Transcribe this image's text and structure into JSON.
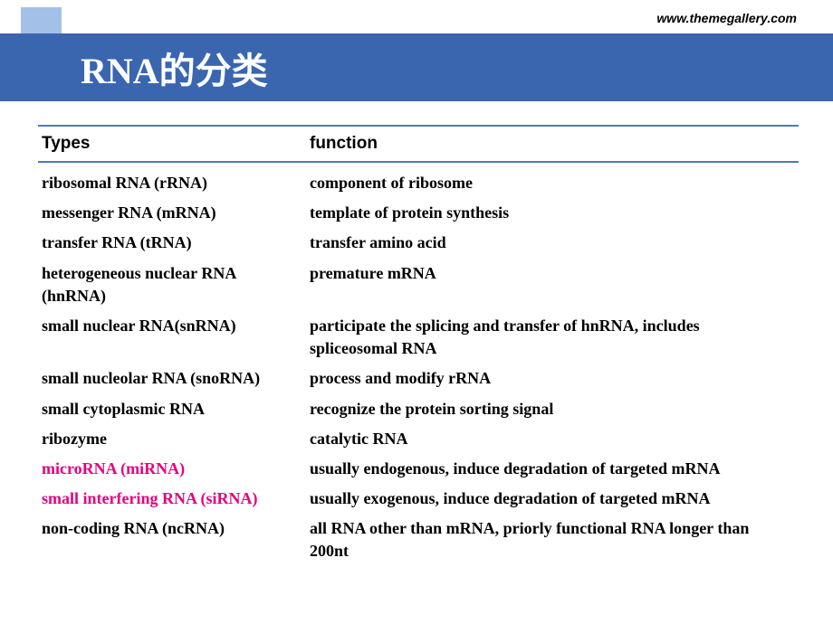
{
  "url": "www.themegallery.com",
  "title": "RNA的分类",
  "colors": {
    "header_bg": "#3a66b0",
    "header_accent": "#a3c0e8",
    "border": "#5078b8",
    "text": "#000000",
    "highlight": "#e6007e",
    "background": "#ffffff"
  },
  "table": {
    "headers": {
      "col1": "Types",
      "col2": "function"
    },
    "rows": [
      {
        "type": "ribosomal RNA (rRNA)",
        "func": "component of ribosome",
        "highlight": false
      },
      {
        "type": "messenger RNA (mRNA)",
        "func": "template of protein synthesis",
        "highlight": false
      },
      {
        "type": "transfer RNA (tRNA)",
        "func": "transfer amino acid",
        "highlight": false
      },
      {
        "type": "heterogeneous nuclear RNA (hnRNA)",
        "func": "premature mRNA",
        "highlight": false
      },
      {
        "type": "small nuclear RNA(snRNA)",
        "func": "participate the splicing  and transfer of hnRNA, includes spliceosomal RNA",
        "highlight": false
      },
      {
        "type": "small nucleolar RNA (snoRNA)",
        "func": "process and modify rRNA",
        "highlight": false
      },
      {
        "type": "small cytoplasmic RNA",
        "func": "recognize the protein sorting signal",
        "highlight": false
      },
      {
        "type": "ribozyme",
        "func": "catalytic RNA",
        "highlight": false
      },
      {
        "type": "microRNA (miRNA)",
        "func": "usually  endogenous, induce degradation of targeted mRNA",
        "highlight": true
      },
      {
        "type": "small interfering RNA (siRNA)",
        "func": "usually  exogenous, induce degradation of targeted mRNA",
        "highlight": true
      },
      {
        "type": "non-coding RNA (ncRNA)",
        "func": "all RNA other than mRNA, priorly functional RNA longer than 200nt",
        "highlight": false
      }
    ]
  }
}
